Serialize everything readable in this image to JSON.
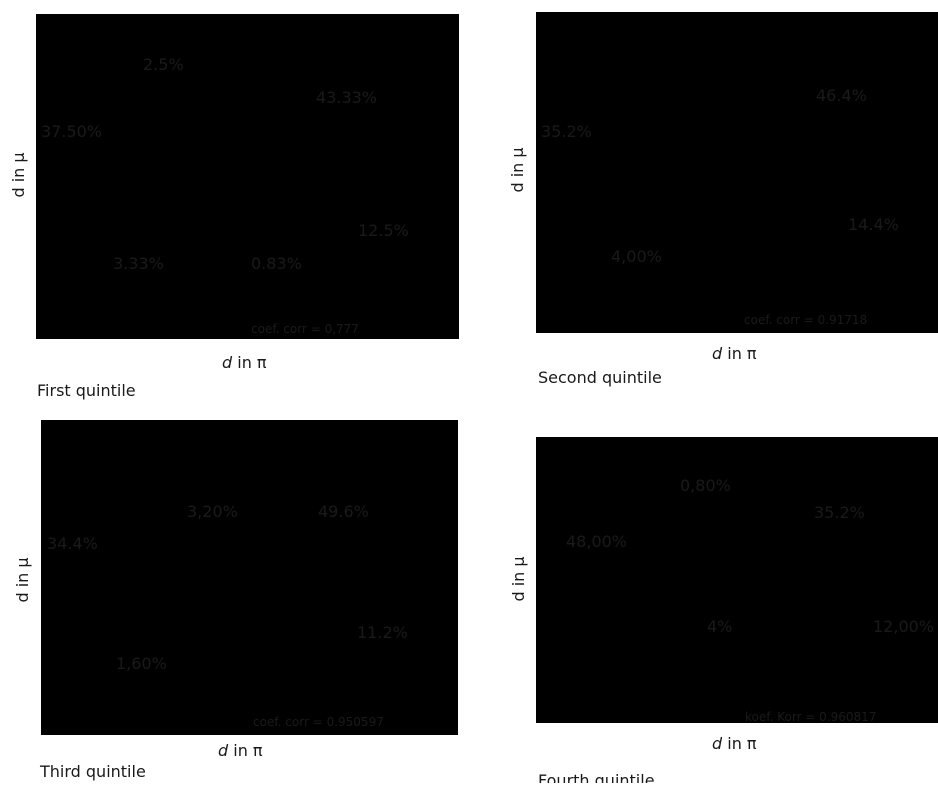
{
  "panels": [
    {
      "id": "first",
      "caption": "First quintile",
      "x_label": "d in π",
      "y_label": "d in μ",
      "coef_label": "coef. corr = 0,777",
      "cells": [
        {
          "text": "37.50%",
          "quadrant": "upper-left"
        },
        {
          "text": "2.5%",
          "quadrant": "upper-left-above-diagonal"
        },
        {
          "text": "43.33%",
          "quadrant": "upper-right"
        },
        {
          "text": "3.33%",
          "quadrant": "lower-left"
        },
        {
          "text": "0.83%",
          "quadrant": "lower-right-below-diagonal"
        },
        {
          "text": "12.5%",
          "quadrant": "lower-right"
        }
      ]
    },
    {
      "id": "second",
      "caption": "Second quintile",
      "x_label": "d in π",
      "y_label": "d in μ",
      "coef_label": "coef. corr = 0.91718",
      "cells": [
        {
          "text": "35.2%",
          "quadrant": "upper-left"
        },
        {
          "text": "46.4%",
          "quadrant": "upper-right"
        },
        {
          "text": "4,00%",
          "quadrant": "lower-left"
        },
        {
          "text": "14.4%",
          "quadrant": "lower-right"
        }
      ]
    },
    {
      "id": "third",
      "caption": "Third quintile",
      "x_label": "d in π",
      "y_label": "d in μ",
      "coef_label": "coef. corr = 0.950597",
      "cells": [
        {
          "text": "34.4%",
          "quadrant": "upper-left"
        },
        {
          "text": "3,20%",
          "quadrant": "upper-left-above-diagonal"
        },
        {
          "text": "49.6%",
          "quadrant": "upper-right"
        },
        {
          "text": "1,60%",
          "quadrant": "lower-left"
        },
        {
          "text": "11.2%",
          "quadrant": "lower-right"
        }
      ]
    },
    {
      "id": "fourth",
      "caption": "Fourth quintile",
      "x_label": "d in π",
      "y_label": "d in μ",
      "coef_label": "koef. Korr = 0.960817",
      "cells": [
        {
          "text": "48,00%",
          "quadrant": "upper-left"
        },
        {
          "text": "0,80%",
          "quadrant": "upper-left-above-diagonal"
        },
        {
          "text": "35.2%",
          "quadrant": "upper-right"
        },
        {
          "text": "4%",
          "quadrant": "lower-left"
        },
        {
          "text": "12,00%",
          "quadrant": "lower-right"
        }
      ]
    }
  ]
}
